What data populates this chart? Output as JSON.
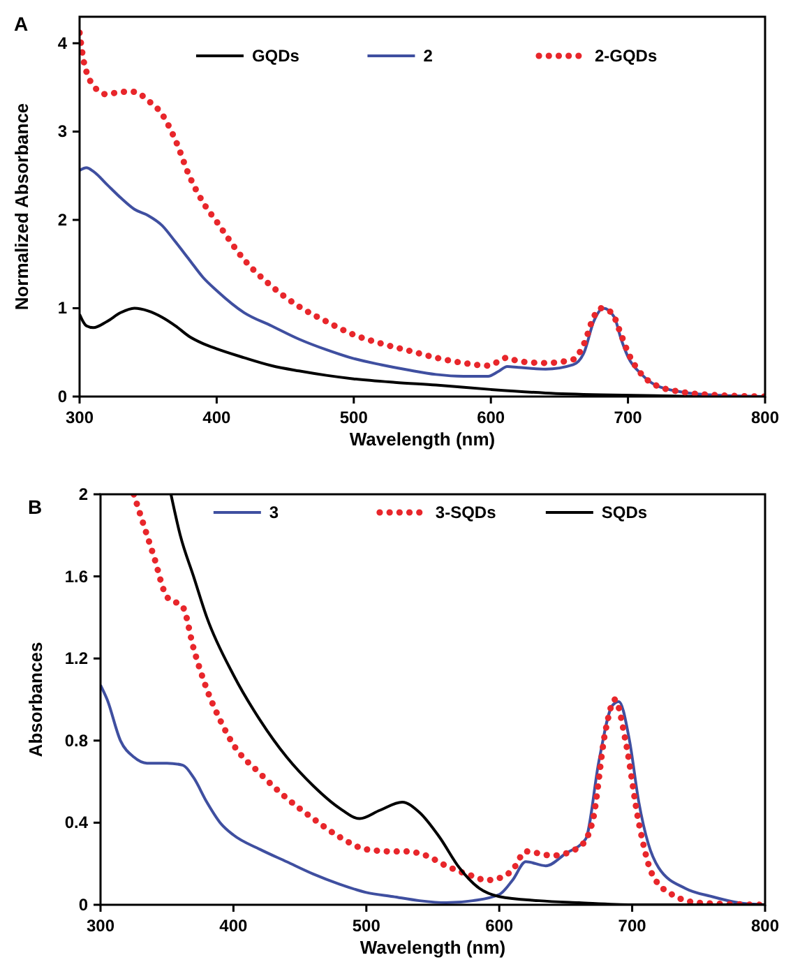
{
  "chart_data": [
    {
      "type": "line",
      "title": "A",
      "xlabel": "Wavelength (nm)",
      "ylabel": "Normalized Absorbance",
      "xlim": [
        300,
        800
      ],
      "xticks": [
        300,
        400,
        500,
        600,
        700,
        800
      ],
      "ylim": [
        0,
        4.3
      ],
      "yticks": [
        0,
        1,
        2,
        3,
        4
      ],
      "grid": false,
      "legend": "top",
      "series": [
        {
          "name": "GQDs",
          "color": "#000000",
          "line_style": "solid",
          "x": [
            300,
            305,
            310,
            320,
            330,
            340,
            350,
            360,
            370,
            380,
            390,
            400,
            420,
            440,
            460,
            480,
            500,
            530,
            560,
            600,
            640,
            680,
            720,
            760,
            800
          ],
          "values": [
            0.93,
            0.8,
            0.78,
            0.85,
            0.95,
            1.0,
            0.97,
            0.9,
            0.8,
            0.68,
            0.6,
            0.54,
            0.44,
            0.35,
            0.29,
            0.24,
            0.2,
            0.16,
            0.13,
            0.08,
            0.04,
            0.02,
            0.01,
            0,
            0
          ]
        },
        {
          "name": "2",
          "color": "#3f4fa0",
          "line_style": "solid",
          "x": [
            300,
            305,
            310,
            320,
            330,
            340,
            350,
            360,
            370,
            380,
            390,
            400,
            420,
            440,
            460,
            480,
            500,
            520,
            540,
            560,
            580,
            598,
            605,
            612,
            620,
            640,
            660,
            668,
            675,
            682,
            690,
            695,
            700,
            710,
            720,
            740,
            760,
            800
          ],
          "values": [
            2.56,
            2.59,
            2.55,
            2.4,
            2.25,
            2.12,
            2.05,
            1.94,
            1.75,
            1.55,
            1.35,
            1.2,
            0.95,
            0.8,
            0.65,
            0.53,
            0.43,
            0.36,
            0.3,
            0.25,
            0.23,
            0.23,
            0.28,
            0.34,
            0.33,
            0.31,
            0.36,
            0.5,
            0.85,
            1.0,
            0.9,
            0.65,
            0.45,
            0.25,
            0.13,
            0.05,
            0.02,
            0
          ]
        },
        {
          "name": "2-GQDs",
          "color": "#e8262b",
          "line_style": "dotted",
          "x": [
            300,
            303,
            307,
            315,
            320,
            330,
            340,
            350,
            360,
            370,
            380,
            390,
            400,
            420,
            440,
            460,
            480,
            500,
            520,
            540,
            560,
            580,
            598,
            612,
            620,
            640,
            660,
            668,
            675,
            680,
            688,
            695,
            700,
            710,
            720,
            740,
            760,
            800
          ],
          "values": [
            4.12,
            3.8,
            3.6,
            3.45,
            3.42,
            3.45,
            3.45,
            3.35,
            3.2,
            2.9,
            2.5,
            2.2,
            1.98,
            1.55,
            1.25,
            1.02,
            0.85,
            0.7,
            0.6,
            0.52,
            0.44,
            0.38,
            0.35,
            0.44,
            0.4,
            0.38,
            0.42,
            0.6,
            0.9,
            1.0,
            0.95,
            0.7,
            0.5,
            0.25,
            0.13,
            0.05,
            0.02,
            0
          ]
        }
      ]
    },
    {
      "type": "line",
      "title": "B",
      "xlabel": "Wavelength (nm)",
      "ylabel": "Absorbances",
      "xlim": [
        300,
        800
      ],
      "xticks": [
        300,
        400,
        500,
        600,
        700,
        800
      ],
      "ylim": [
        0,
        2
      ],
      "yticks": [
        0,
        {
          "value": 0.4,
          "label": "0.4"
        },
        {
          "value": 0.8,
          "label": "0.8"
        },
        {
          "value": 1.2,
          "label": "1.2"
        },
        {
          "value": 1.6,
          "label": "1.6"
        },
        2
      ],
      "grid": false,
      "legend": "top",
      "series": [
        {
          "name": "3",
          "color": "#3f4fa0",
          "line_style": "solid",
          "x": [
            300,
            305,
            315,
            325,
            335,
            350,
            362,
            370,
            380,
            390,
            400,
            420,
            440,
            460,
            480,
            500,
            520,
            540,
            560,
            580,
            600,
            610,
            620,
            635,
            650,
            665,
            675,
            685,
            690,
            698,
            705,
            712,
            720,
            740,
            760,
            780,
            800
          ],
          "values": [
            1.07,
            1.0,
            0.8,
            0.72,
            0.69,
            0.69,
            0.68,
            0.62,
            0.5,
            0.4,
            0.34,
            0.27,
            0.21,
            0.15,
            0.1,
            0.06,
            0.04,
            0.02,
            0.01,
            0.02,
            0.05,
            0.12,
            0.21,
            0.19,
            0.25,
            0.32,
            0.7,
            0.97,
            0.99,
            0.8,
            0.5,
            0.3,
            0.18,
            0.08,
            0.04,
            0.01,
            0
          ]
        },
        {
          "name": "3-SQDs",
          "color": "#e8262b",
          "line_style": "dotted",
          "x": [
            325,
            330,
            340,
            350,
            362,
            370,
            380,
            390,
            400,
            420,
            440,
            460,
            480,
            500,
            520,
            530,
            545,
            560,
            580,
            590,
            600,
            610,
            620,
            640,
            660,
            670,
            680,
            687,
            695,
            705,
            715,
            730,
            750,
            800
          ],
          "values": [
            2.0,
            1.9,
            1.7,
            1.5,
            1.45,
            1.25,
            1.05,
            0.9,
            0.78,
            0.64,
            0.52,
            0.42,
            0.33,
            0.27,
            0.26,
            0.26,
            0.24,
            0.19,
            0.14,
            0.12,
            0.13,
            0.17,
            0.26,
            0.24,
            0.28,
            0.4,
            0.85,
            1.0,
            0.8,
            0.4,
            0.15,
            0.05,
            0.01,
            0
          ]
        },
        {
          "name": "SQDs",
          "color": "#000000",
          "line_style": "solid",
          "x": [
            353,
            360,
            370,
            380,
            400,
            420,
            440,
            460,
            480,
            495,
            510,
            527,
            540,
            555,
            570,
            585,
            600,
            630,
            660,
            700,
            800
          ],
          "values": [
            2.0,
            1.8,
            1.6,
            1.4,
            1.12,
            0.9,
            0.72,
            0.58,
            0.47,
            0.42,
            0.46,
            0.5,
            0.45,
            0.33,
            0.18,
            0.08,
            0.04,
            0.02,
            0.01,
            0,
            0
          ]
        }
      ]
    }
  ]
}
